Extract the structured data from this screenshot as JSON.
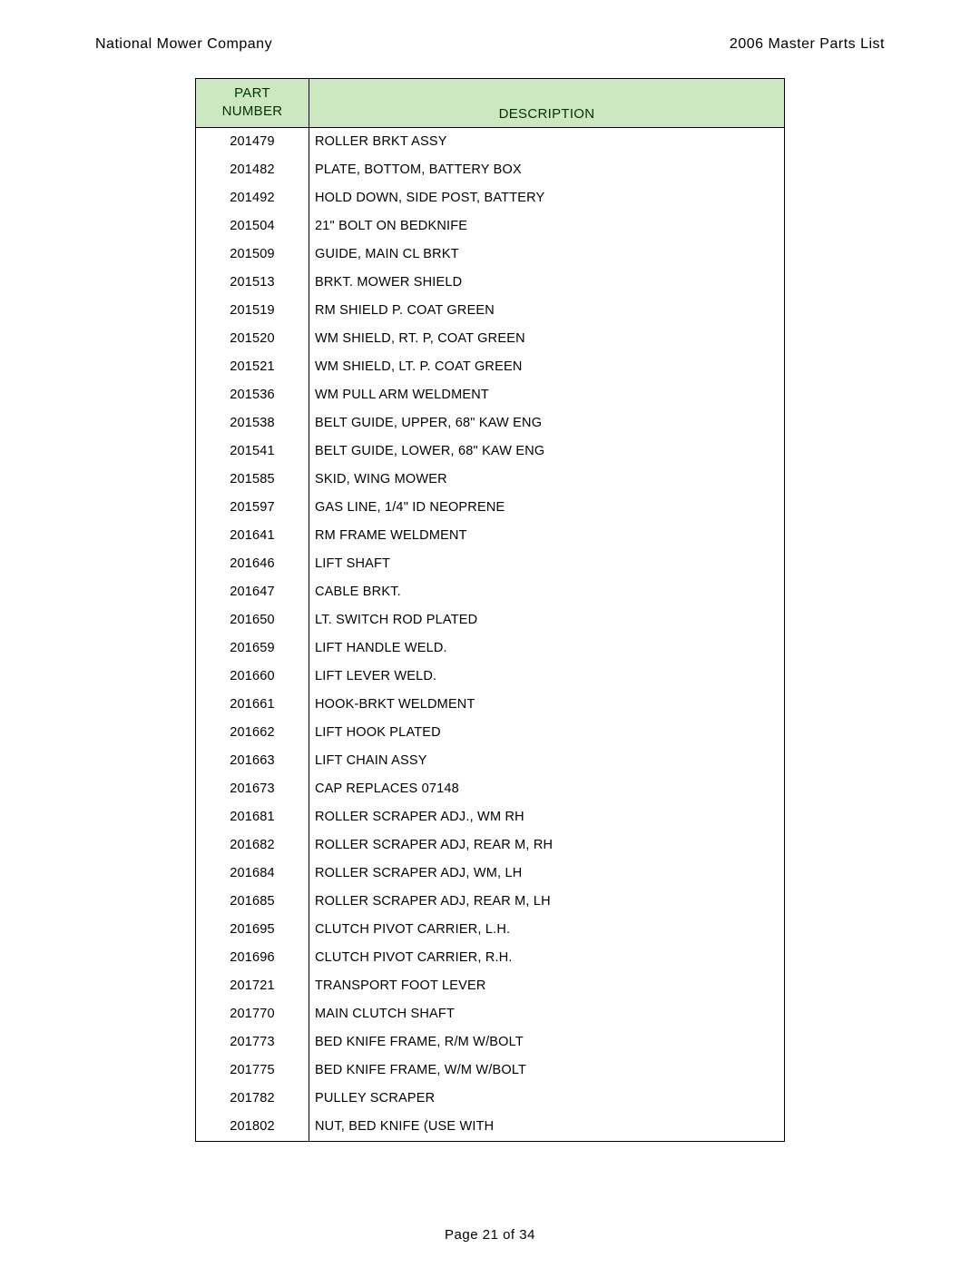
{
  "header": {
    "left": "National Mower Company",
    "right": "2006 Master Parts List"
  },
  "table": {
    "columns": {
      "part_number_line1": "PART",
      "part_number_line2": "NUMBER",
      "description": "DESCRIPTION"
    },
    "header_bg": "#cce8c2",
    "header_text_color": "#003300",
    "border_color": "#000000",
    "rows": [
      {
        "pn": "201479",
        "desc": "ROLLER BRKT ASSY"
      },
      {
        "pn": "201482",
        "desc": "PLATE, BOTTOM, BATTERY BOX"
      },
      {
        "pn": "201492",
        "desc": "HOLD DOWN, SIDE POST, BATTERY"
      },
      {
        "pn": "201504",
        "desc": "21\" BOLT ON BEDKNIFE"
      },
      {
        "pn": "201509",
        "desc": "GUIDE, MAIN CL BRKT"
      },
      {
        "pn": "201513",
        "desc": "BRKT. MOWER SHIELD"
      },
      {
        "pn": "201519",
        "desc": "RM SHIELD P. COAT GREEN"
      },
      {
        "pn": "201520",
        "desc": "WM SHIELD, RT. P, COAT GREEN"
      },
      {
        "pn": "201521",
        "desc": "WM SHIELD, LT. P. COAT GREEN"
      },
      {
        "pn": "201536",
        "desc": "WM PULL ARM WELDMENT"
      },
      {
        "pn": "201538",
        "desc": "BELT GUIDE, UPPER, 68\" KAW ENG"
      },
      {
        "pn": "201541",
        "desc": "BELT GUIDE, LOWER, 68\" KAW ENG"
      },
      {
        "pn": "201585",
        "desc": "SKID, WING MOWER"
      },
      {
        "pn": "201597",
        "desc": "GAS LINE, 1/4\" ID NEOPRENE"
      },
      {
        "pn": "201641",
        "desc": "RM FRAME WELDMENT"
      },
      {
        "pn": "201646",
        "desc": "LIFT SHAFT"
      },
      {
        "pn": "201647",
        "desc": "CABLE BRKT."
      },
      {
        "pn": "201650",
        "desc": "LT. SWITCH ROD PLATED"
      },
      {
        "pn": "201659",
        "desc": "LIFT HANDLE WELD."
      },
      {
        "pn": "201660",
        "desc": "LIFT LEVER WELD."
      },
      {
        "pn": "201661",
        "desc": "HOOK-BRKT WELDMENT"
      },
      {
        "pn": "201662",
        "desc": "LIFT HOOK PLATED"
      },
      {
        "pn": "201663",
        "desc": "LIFT CHAIN ASSY"
      },
      {
        "pn": "201673",
        "desc": "CAP REPLACES 07148"
      },
      {
        "pn": "201681",
        "desc": "ROLLER SCRAPER ADJ., WM RH"
      },
      {
        "pn": "201682",
        "desc": "ROLLER SCRAPER ADJ, REAR M, RH"
      },
      {
        "pn": "201684",
        "desc": "ROLLER SCRAPER ADJ, WM, LH"
      },
      {
        "pn": "201685",
        "desc": "ROLLER SCRAPER ADJ, REAR M, LH"
      },
      {
        "pn": "201695",
        "desc": "CLUTCH PIVOT CARRIER, L.H."
      },
      {
        "pn": "201696",
        "desc": "CLUTCH PIVOT CARRIER, R.H."
      },
      {
        "pn": "201721",
        "desc": "TRANSPORT FOOT LEVER"
      },
      {
        "pn": "201770",
        "desc": "MAIN CLUTCH SHAFT"
      },
      {
        "pn": "201773",
        "desc": "BED KNIFE FRAME, R/M W/BOLT"
      },
      {
        "pn": "201775",
        "desc": "BED KNIFE FRAME, W/M W/BOLT"
      },
      {
        "pn": "201782",
        "desc": "PULLEY SCRAPER"
      },
      {
        "pn": "201802",
        "desc": "NUT, BED KNIFE (USE WITH"
      }
    ]
  },
  "footer": {
    "text": "Page 21 of 34"
  }
}
